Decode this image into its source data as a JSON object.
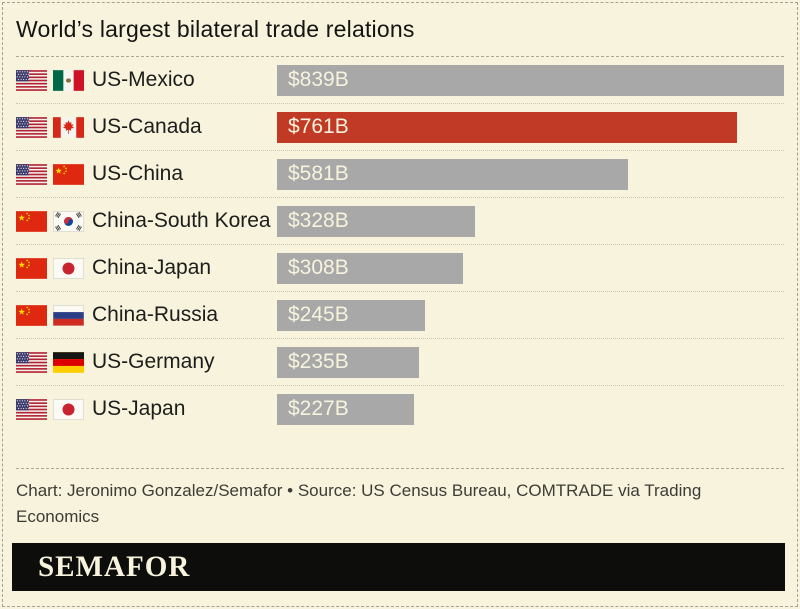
{
  "chart_data": {
    "type": "bar",
    "orientation": "horizontal",
    "title": "World’s largest bilateral trade relations",
    "unit": "USD billions",
    "value_axis_max": 839,
    "categories": [
      "US-Mexico",
      "US-Canada",
      "US-China",
      "China-South Korea",
      "China-Japan",
      "China-Russia",
      "US-Germany",
      "US-Japan"
    ],
    "values": [
      839,
      761,
      581,
      328,
      308,
      245,
      235,
      227
    ],
    "rows": [
      {
        "label": "US-Mexico",
        "value": 839,
        "value_label": "$839B",
        "flag_icons": [
          "us-flag-icon",
          "mexico-flag-icon"
        ],
        "highlight": false
      },
      {
        "label": "US-Canada",
        "value": 761,
        "value_label": "$761B",
        "flag_icons": [
          "us-flag-icon",
          "canada-flag-icon"
        ],
        "highlight": true
      },
      {
        "label": "US-China",
        "value": 581,
        "value_label": "$581B",
        "flag_icons": [
          "us-flag-icon",
          "china-flag-icon"
        ],
        "highlight": false
      },
      {
        "label": "China-South Korea",
        "value": 328,
        "value_label": "$328B",
        "flag_icons": [
          "china-flag-icon",
          "south-korea-flag-icon"
        ],
        "highlight": false
      },
      {
        "label": "China-Japan",
        "value": 308,
        "value_label": "$308B",
        "flag_icons": [
          "china-flag-icon",
          "japan-flag-icon"
        ],
        "highlight": false
      },
      {
        "label": "China-Russia",
        "value": 245,
        "value_label": "$245B",
        "flag_icons": [
          "china-flag-icon",
          "russia-flag-icon"
        ],
        "highlight": false
      },
      {
        "label": "US-Germany",
        "value": 235,
        "value_label": "$235B",
        "flag_icons": [
          "us-flag-icon",
          "germany-flag-icon"
        ],
        "highlight": false
      },
      {
        "label": "US-Japan",
        "value": 227,
        "value_label": "$227B",
        "flag_icons": [
          "us-flag-icon",
          "japan-flag-icon"
        ],
        "highlight": false
      }
    ],
    "colors": {
      "bar_default": "#a8a8a8",
      "bar_highlight": "#c03a26",
      "value_text": "#f7f3dd"
    },
    "legend": false,
    "grid": false
  },
  "footer": {
    "credit_lines": [
      "Chart: Jeronimo Gonzalez/Semafor • Source: US Census Bureau, COMTRADE via Trading",
      "Economics"
    ]
  },
  "brand": {
    "logo_text": "SEMAFOR"
  },
  "theme": {
    "background": "#f7f3dd",
    "frame_border": "#a3a196",
    "title_text": "#141412",
    "muted_text": "#3d3c36",
    "logo_background": "#0d0d0b"
  }
}
